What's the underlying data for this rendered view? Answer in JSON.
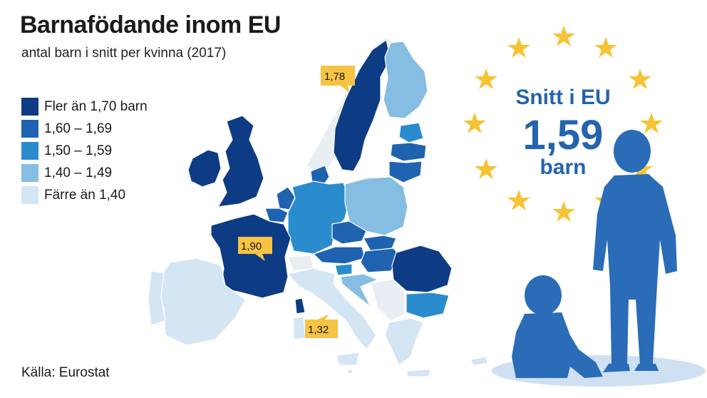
{
  "title": "Barnafödande inom EU",
  "subtitle": "antal barn i snitt per kvinna (2017)",
  "legend": [
    {
      "label": "Fler än 1,70 barn",
      "color": "#0d3b84"
    },
    {
      "label": "1,60 – 1,69",
      "color": "#1f63b0"
    },
    {
      "label": "1,50 – 1,59",
      "color": "#2b8ccd"
    },
    {
      "label": "1,40 – 1,49",
      "color": "#86bde2"
    },
    {
      "label": "Färre än 1,40",
      "color": "#d4e5f4"
    }
  ],
  "callouts": [
    {
      "country": "Sverige",
      "value": "1,78"
    },
    {
      "country": "Frankrike",
      "value": "1,90"
    },
    {
      "country": "Italien",
      "value": "1,32"
    }
  ],
  "eu_average": {
    "line1": "Snitt i EU",
    "value": "1,59",
    "unit": "barn"
  },
  "source": "Källa: Eurostat",
  "colors": {
    "callout": "#f6c344",
    "star": "#f5c334",
    "silhouette": "#2a6cb7",
    "shadow": "#cfe0f2"
  }
}
